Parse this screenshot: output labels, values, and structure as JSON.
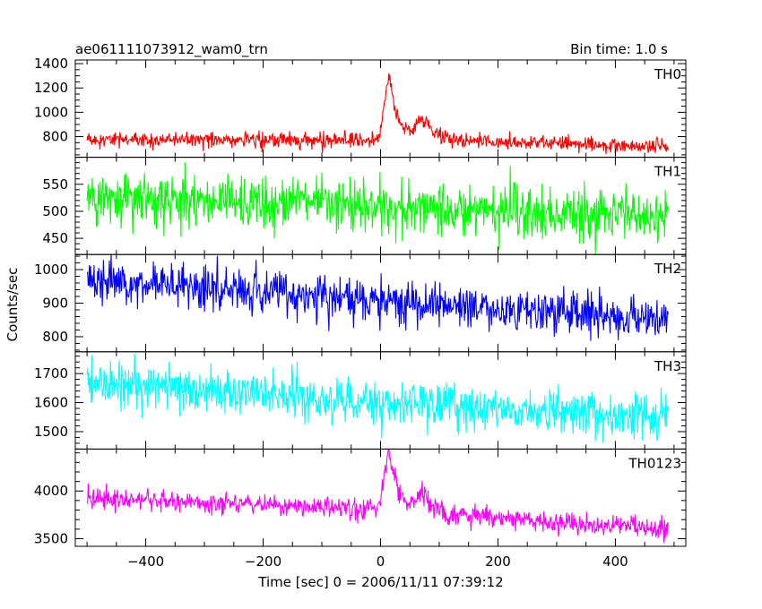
{
  "header": {
    "left_title": "ae061111073912_wam0_trn",
    "right_title": "Bin time: 1.0 s"
  },
  "axes": {
    "ylabel": "Counts/sec",
    "xlabel": "Time [sec] 0 = 2006/11/11 07:39:12"
  },
  "chart_data": {
    "type": "line",
    "title": "ae061111073912_wam0_trn",
    "bin_time": "Bin time: 1.0 s",
    "xlabel": "Time [sec] 0 = 2006/11/11 07:39:12",
    "ylabel": "Counts/sec",
    "xlim": [
      -520,
      520
    ],
    "x_range": [
      -500,
      490
    ],
    "xticks": [
      -400,
      -200,
      0,
      200,
      400
    ],
    "x_minor_step": 50,
    "panels": [
      {
        "name": "TH0",
        "color": "#ff0000",
        "ylim": [
          630,
          1430
        ],
        "yticks": [
          800,
          1000,
          1200,
          1400
        ],
        "y_minor_step": 50,
        "baseline": [
          [
            -500,
            775
          ],
          [
            0,
            770
          ],
          [
            100,
            770
          ],
          [
            490,
            715
          ]
        ],
        "noise": 30,
        "bursts": [
          {
            "center": 15,
            "height": 520,
            "rise": 8,
            "decay": 15
          },
          {
            "center": 75,
            "height": 170,
            "rise": 15,
            "decay": 18
          }
        ]
      },
      {
        "name": "TH1",
        "color": "#00ff00",
        "ylim": [
          420,
          600
        ],
        "yticks": [
          450,
          500,
          550
        ],
        "y_minor_step": 10,
        "baseline": [
          [
            -500,
            528
          ],
          [
            490,
            488
          ]
        ],
        "noise": 24,
        "bursts": []
      },
      {
        "name": "TH2",
        "color": "#0000ff",
        "ylim": [
          755,
          1045
        ],
        "yticks": [
          800,
          900,
          1000
        ],
        "y_minor_step": 20,
        "baseline": [
          [
            -500,
            975
          ],
          [
            0,
            905
          ],
          [
            490,
            850
          ]
        ],
        "noise": 32,
        "bursts": []
      },
      {
        "name": "TH3",
        "color": "#00ffff",
        "ylim": [
          1440,
          1775
        ],
        "yticks": [
          1500,
          1600,
          1700
        ],
        "y_minor_step": 20,
        "baseline": [
          [
            -500,
            1670
          ],
          [
            0,
            1600
          ],
          [
            490,
            1550
          ]
        ],
        "noise": 38,
        "bursts": []
      },
      {
        "name": "TH0123",
        "color": "#ff00ff",
        "ylim": [
          3420,
          4440
        ],
        "yticks": [
          3500,
          4000
        ],
        "y_minor_step": 100,
        "baseline": [
          [
            -500,
            3930
          ],
          [
            0,
            3800
          ],
          [
            100,
            3750
          ],
          [
            490,
            3600
          ]
        ],
        "noise": 55,
        "bursts": [
          {
            "center": 15,
            "height": 620,
            "rise": 8,
            "decay": 15
          },
          {
            "center": 75,
            "height": 190,
            "rise": 15,
            "decay": 18
          }
        ]
      }
    ]
  }
}
